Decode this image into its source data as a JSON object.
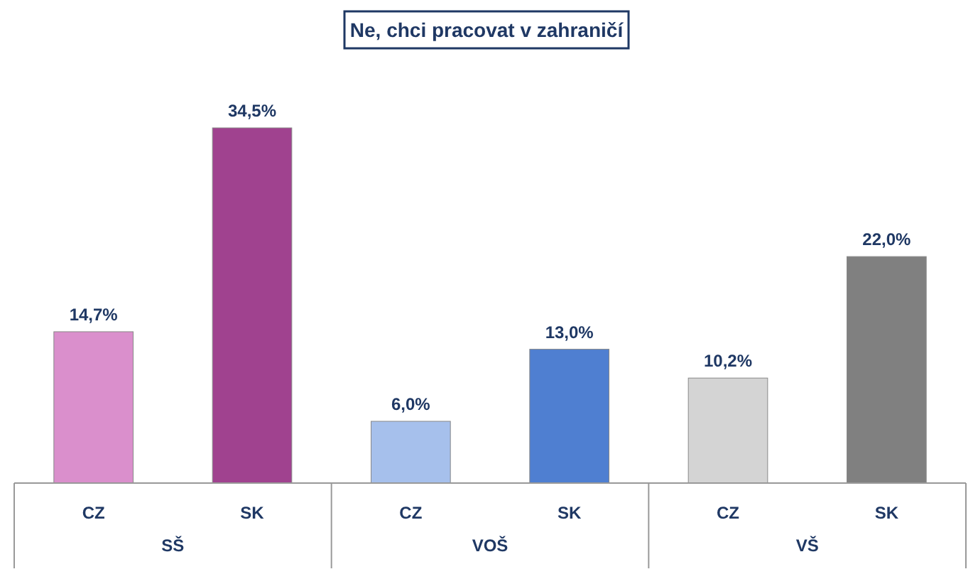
{
  "chart_data": {
    "type": "bar",
    "title": "Ne, chci pracovat v zahraničí",
    "categories": [
      "CZ",
      "SK",
      "CZ",
      "SK",
      "CZ",
      "SK"
    ],
    "values": [
      14.7,
      34.5,
      6.0,
      13.0,
      10.2,
      22.0
    ],
    "value_labels": [
      "14,7%",
      "34,5%",
      "6,0%",
      "13,0%",
      "10,2%",
      "22,0%"
    ],
    "colors": [
      "#da8fcc",
      "#a0428f",
      "#a6c0ec",
      "#4f7fd1",
      "#d4d4d4",
      "#808080"
    ],
    "annotations": [
      "SŠ",
      "VOŠ",
      "VŠ"
    ]
  }
}
